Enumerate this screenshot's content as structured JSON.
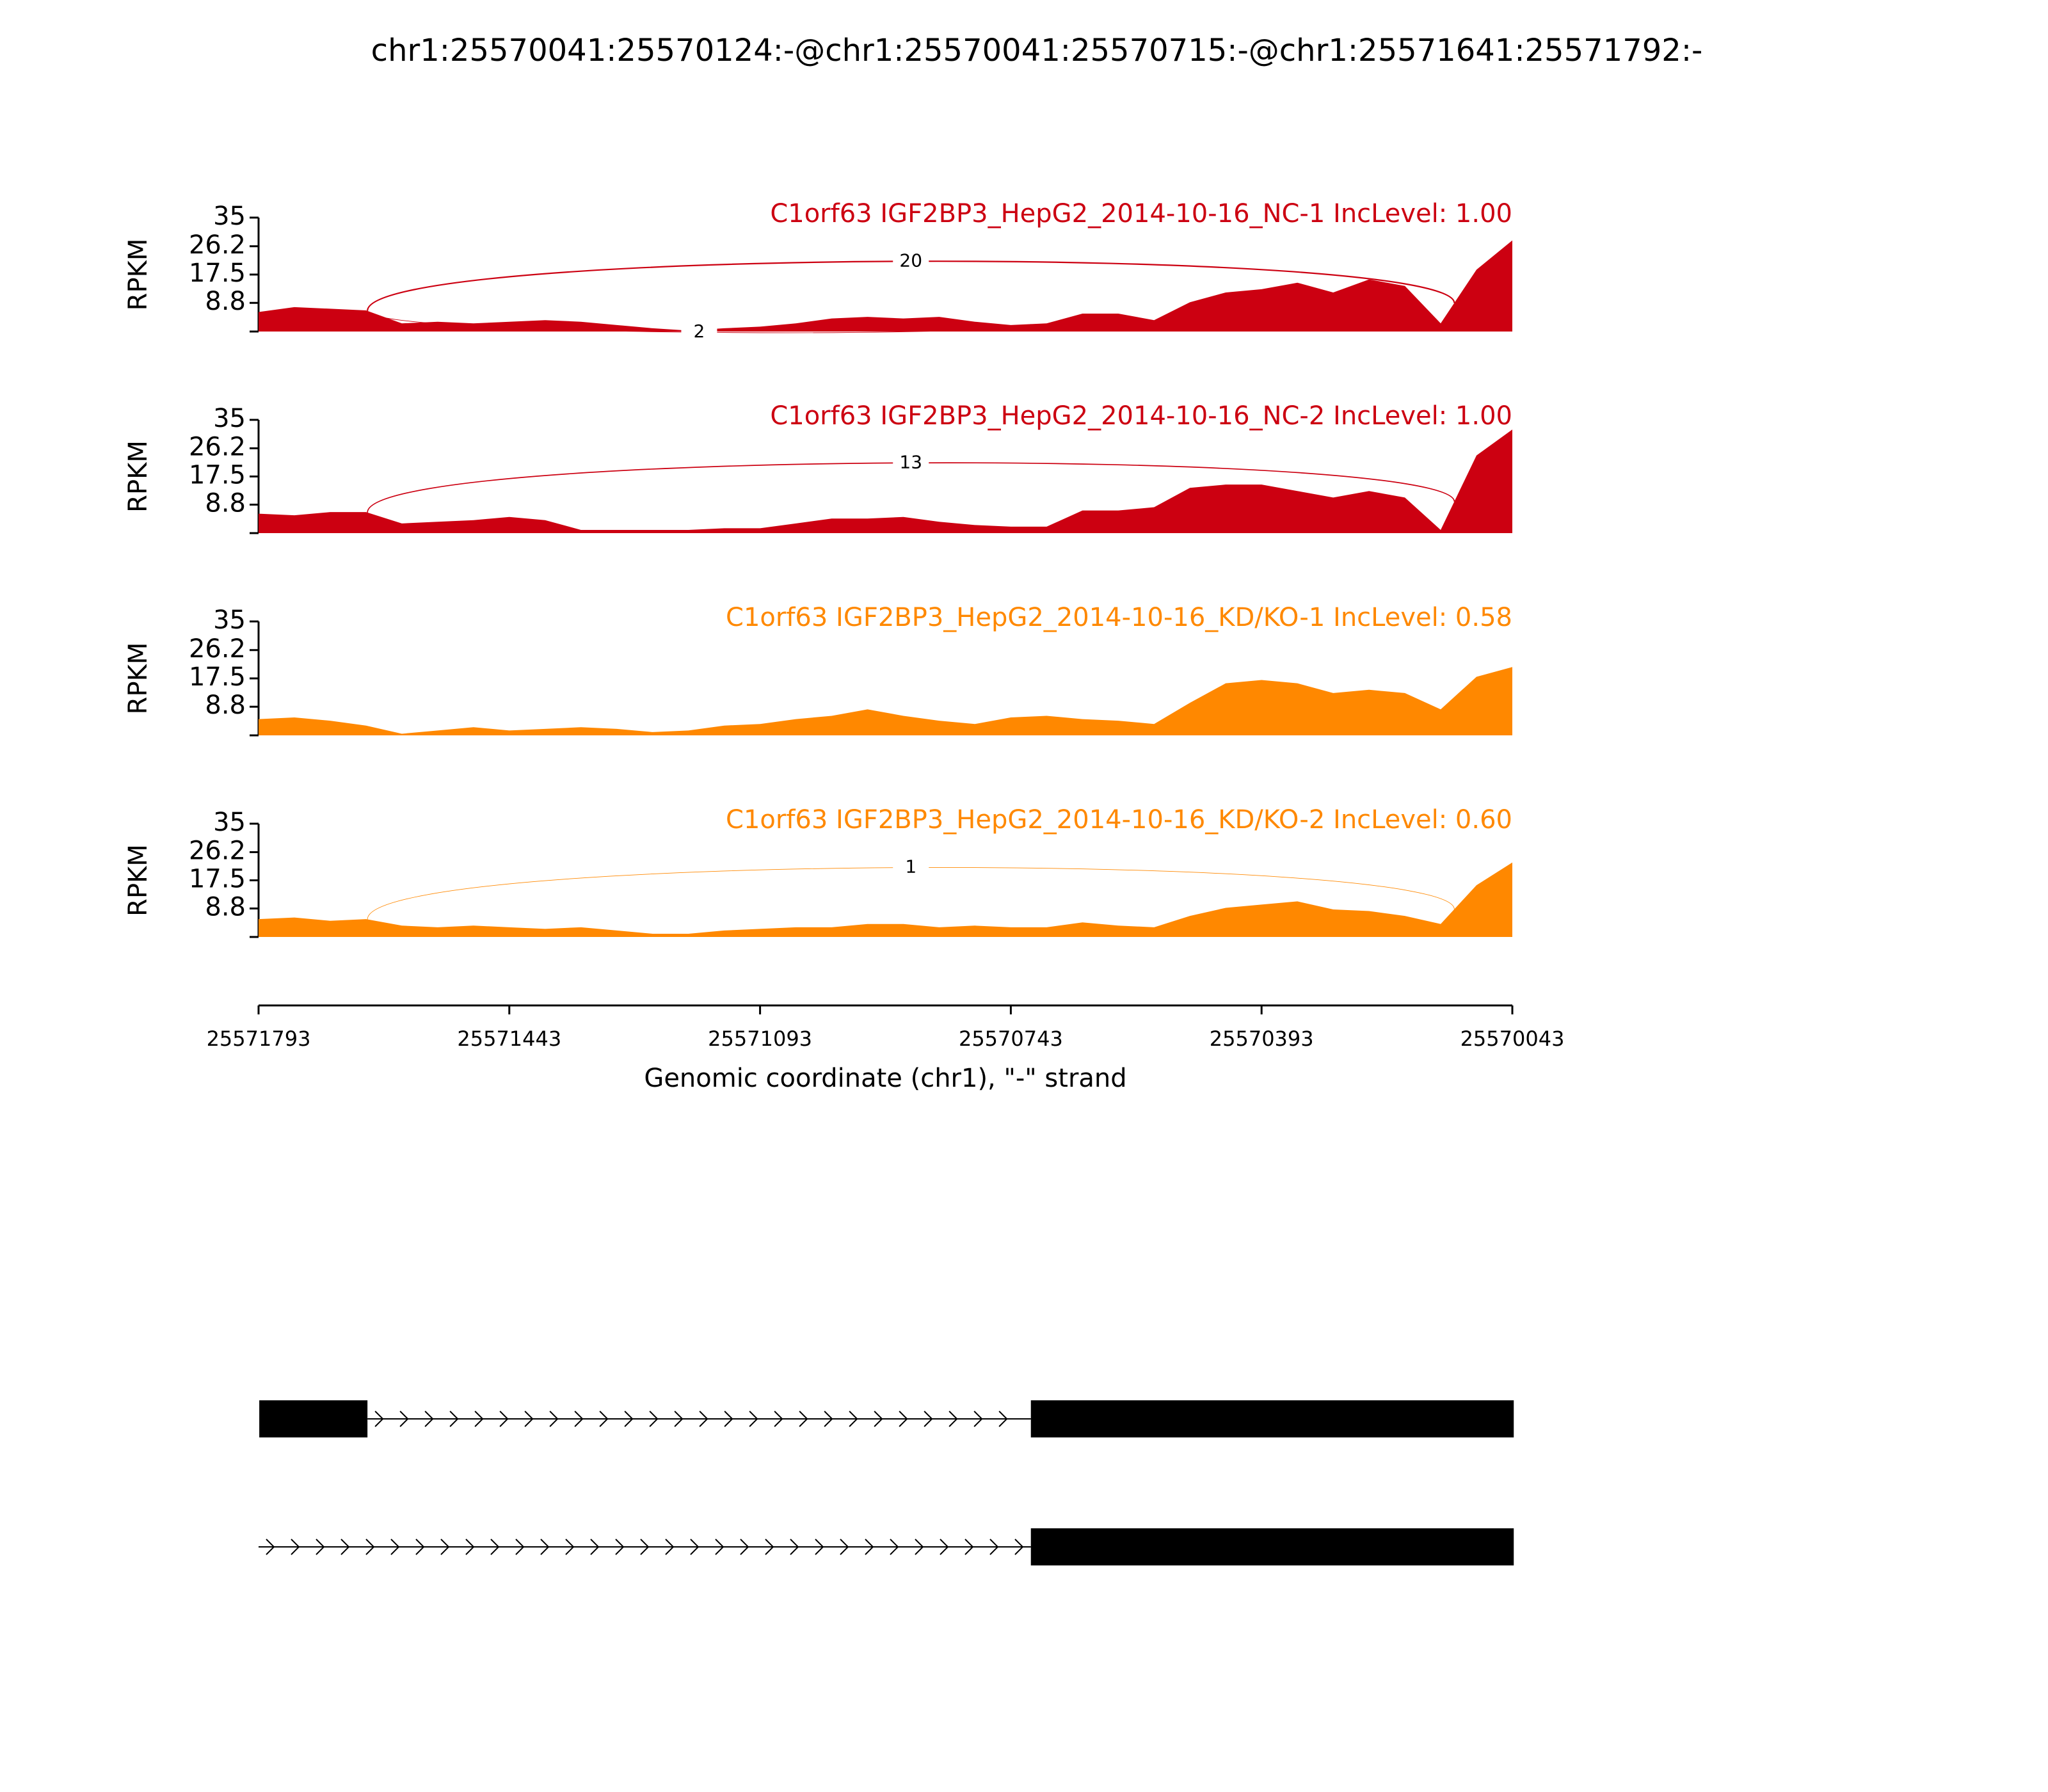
{
  "title": "chr1:25570041:25570124:-@chr1:25570041:25570715:-@chr1:25571641:25571792:-",
  "x_axis": {
    "xlim": [
      25571793,
      25570043
    ],
    "xticks": [
      25571793,
      25571443,
      25571093,
      25570743,
      25570393,
      25570043
    ],
    "xlabel": "Genomic coordinate (chr1), \"-\" strand"
  },
  "chart_data": [
    {
      "type": "area",
      "title": "C1orf63 IGF2BP3_HepG2_2014-10-16_NC-1 IncLevel: 1.00",
      "ylabel": "RPKM",
      "color": "#cc0011",
      "xlim": [
        25571793,
        25570043
      ],
      "ylim": [
        0,
        35
      ],
      "yticks": [
        8.8,
        17.5,
        26.2,
        35
      ],
      "x": [
        25571793,
        25571743,
        25571693,
        25571643,
        25571593,
        25571543,
        25571493,
        25571443,
        25571393,
        25571343,
        25571293,
        25571243,
        25571193,
        25571143,
        25571093,
        25571043,
        25570993,
        25570943,
        25570893,
        25570843,
        25570793,
        25570743,
        25570693,
        25570643,
        25570593,
        25570543,
        25570493,
        25570443,
        25570393,
        25570343,
        25570293,
        25570243,
        25570193,
        25570143,
        25570093,
        25570043
      ],
      "values": [
        6,
        7.5,
        7,
        6.5,
        2.5,
        3,
        2.5,
        3,
        3.5,
        3,
        2,
        1,
        0.3,
        1,
        1.5,
        2.5,
        4,
        4.5,
        4,
        4.5,
        3,
        2,
        2.5,
        5.5,
        5.5,
        3.5,
        9,
        12,
        13,
        15,
        12,
        16,
        14,
        2.5,
        19,
        28
      ],
      "junctions": [
        {
          "start": 25571641,
          "end": 25570124,
          "count": 20
        },
        {
          "start": 25571641,
          "end": 25570715,
          "count": 2
        }
      ]
    },
    {
      "type": "area",
      "title": "C1orf63 IGF2BP3_HepG2_2014-10-16_NC-2 IncLevel: 1.00",
      "ylabel": "RPKM",
      "color": "#cc0011",
      "xlim": [
        25571793,
        25570043
      ],
      "ylim": [
        0,
        35
      ],
      "yticks": [
        8.8,
        17.5,
        26.2,
        35
      ],
      "x": [
        25571793,
        25571743,
        25571693,
        25571643,
        25571593,
        25571543,
        25571493,
        25571443,
        25571393,
        25571343,
        25571293,
        25571243,
        25571193,
        25571143,
        25571093,
        25571043,
        25570993,
        25570943,
        25570893,
        25570843,
        25570793,
        25570743,
        25570693,
        25570643,
        25570593,
        25570543,
        25570493,
        25570443,
        25570393,
        25570343,
        25570293,
        25570243,
        25570193,
        25570143,
        25570093,
        25570043
      ],
      "values": [
        6,
        5.5,
        6.5,
        6.5,
        3,
        3.5,
        4,
        5,
        4,
        1,
        1,
        1,
        1,
        1.5,
        1.5,
        3,
        4.5,
        4.5,
        5,
        3.5,
        2.5,
        2,
        2,
        7,
        7,
        8,
        14,
        15,
        15,
        13,
        11,
        13,
        11,
        1,
        24,
        32
      ],
      "junctions": [
        {
          "start": 25571641,
          "end": 25570124,
          "count": 13
        }
      ]
    },
    {
      "type": "area",
      "title": "C1orf63 IGF2BP3_HepG2_2014-10-16_KD/KO-1 IncLevel: 0.58",
      "ylabel": "RPKM",
      "color": "#ff8800",
      "xlim": [
        25571793,
        25570043
      ],
      "ylim": [
        0,
        35
      ],
      "yticks": [
        8.8,
        17.5,
        26.2,
        35
      ],
      "x": [
        25571793,
        25571743,
        25571693,
        25571643,
        25571593,
        25571543,
        25571493,
        25571443,
        25571393,
        25571343,
        25571293,
        25571243,
        25571193,
        25571143,
        25571093,
        25571043,
        25570993,
        25570943,
        25570893,
        25570843,
        25570793,
        25570743,
        25570693,
        25570643,
        25570593,
        25570543,
        25570493,
        25570443,
        25570393,
        25570343,
        25570293,
        25570243,
        25570193,
        25570143,
        25570093,
        25570043
      ],
      "values": [
        5,
        5.5,
        4.5,
        3,
        0.5,
        1.5,
        2.5,
        1.5,
        2,
        2.5,
        2,
        1,
        1.5,
        3,
        3.5,
        5,
        6,
        8,
        6,
        4.5,
        3.5,
        5.5,
        6,
        5,
        4.5,
        3.5,
        10,
        16,
        17,
        16,
        13,
        14,
        13,
        8,
        18,
        21
      ],
      "junctions": []
    },
    {
      "type": "area",
      "title": "C1orf63 IGF2BP3_HepG2_2014-10-16_KD/KO-2 IncLevel: 0.60",
      "ylabel": "RPKM",
      "color": "#ff8800",
      "xlim": [
        25571793,
        25570043
      ],
      "ylim": [
        0,
        35
      ],
      "yticks": [
        8.8,
        17.5,
        26.2,
        35
      ],
      "x": [
        25571793,
        25571743,
        25571693,
        25571643,
        25571593,
        25571543,
        25571493,
        25571443,
        25571393,
        25571343,
        25571293,
        25571243,
        25571193,
        25571143,
        25571093,
        25571043,
        25570993,
        25570943,
        25570893,
        25570843,
        25570793,
        25570743,
        25570693,
        25570643,
        25570593,
        25570543,
        25570493,
        25570443,
        25570393,
        25570343,
        25570293,
        25570243,
        25570193,
        25570143,
        25570093,
        25570043
      ],
      "values": [
        5.5,
        6,
        5,
        5.5,
        3.5,
        3,
        3.5,
        3,
        2.5,
        3,
        2,
        1,
        1,
        2,
        2.5,
        3,
        3,
        4,
        4,
        3,
        3.5,
        3,
        3,
        4.5,
        3.5,
        3,
        6.5,
        9,
        10,
        11,
        8.5,
        8,
        6.5,
        4,
        16,
        23
      ],
      "junctions": [
        {
          "start": 25571641,
          "end": 25570124,
          "count": 1
        }
      ]
    }
  ],
  "gene_models": [
    {
      "intron": [
        25571641,
        25570715
      ],
      "exons": [
        [
          25571792,
          25571641
        ],
        [
          25570715,
          25570041
        ]
      ]
    },
    {
      "intron": [
        25571793,
        25570715
      ],
      "exons": [
        [
          25570715,
          25570041
        ]
      ]
    }
  ]
}
